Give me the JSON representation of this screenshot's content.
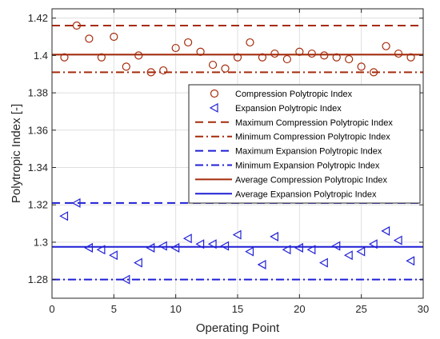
{
  "chart_data": {
    "type": "scatter",
    "title": "",
    "xlabel": "Operating Point",
    "ylabel": "Polytropic Index [-]",
    "xlim": [
      0,
      30
    ],
    "ylim": [
      1.27,
      1.425
    ],
    "xticks": [
      0,
      5,
      10,
      15,
      20,
      25,
      30
    ],
    "yticks": [
      1.28,
      1.3,
      1.32,
      1.34,
      1.36,
      1.38,
      1.4,
      1.42
    ],
    "xtick_labels": [
      "0",
      "5",
      "10",
      "15",
      "20",
      "25",
      "30"
    ],
    "ytick_labels": [
      "1.28",
      "1.3",
      "1.32",
      "1.34",
      "1.36",
      "1.38",
      "1.4",
      "1.42"
    ],
    "grid": true,
    "legend_position": "inside-right",
    "colors": {
      "compression": "#a52a0a",
      "expansion": "#1f1fd6",
      "grid": "#dfdfdf",
      "axis": "#262626"
    },
    "series": [
      {
        "name": "Compression Polytropic Index",
        "kind": "scatter",
        "marker": "circle",
        "x": [
          1,
          2,
          3,
          4,
          5,
          6,
          7,
          8,
          9,
          10,
          11,
          12,
          13,
          14,
          15,
          16,
          17,
          18,
          19,
          20,
          21,
          22,
          23,
          24,
          25,
          26,
          27,
          28,
          29
        ],
        "y": [
          1.399,
          1.416,
          1.409,
          1.399,
          1.41,
          1.394,
          1.4,
          1.391,
          1.392,
          1.404,
          1.407,
          1.402,
          1.395,
          1.393,
          1.399,
          1.407,
          1.399,
          1.401,
          1.398,
          1.402,
          1.401,
          1.4,
          1.399,
          1.398,
          1.394,
          1.391,
          1.405,
          1.401,
          1.399
        ]
      },
      {
        "name": "Expansion Polytropic Index",
        "kind": "scatter",
        "marker": "triangle-left",
        "x": [
          1,
          2,
          3,
          4,
          5,
          6,
          7,
          8,
          9,
          10,
          11,
          12,
          13,
          14,
          15,
          16,
          17,
          18,
          19,
          20,
          21,
          22,
          23,
          24,
          25,
          26,
          27,
          28,
          29
        ],
        "y": [
          1.314,
          1.321,
          1.297,
          1.296,
          1.293,
          1.28,
          1.289,
          1.297,
          1.298,
          1.297,
          1.302,
          1.299,
          1.299,
          1.298,
          1.304,
          1.295,
          1.288,
          1.303,
          1.296,
          1.297,
          1.296,
          1.289,
          1.298,
          1.293,
          1.295,
          1.299,
          1.306,
          1.301,
          1.29
        ]
      },
      {
        "name": "Maximum Compression Polytropic Index",
        "kind": "hline",
        "y": 1.416,
        "style": "dashed",
        "color": "compression"
      },
      {
        "name": "Minimum Compression Polytropic Index",
        "kind": "hline",
        "y": 1.391,
        "style": "dashdot",
        "color": "compression"
      },
      {
        "name": "Maximum Expansion Polytropic Index",
        "kind": "hline",
        "y": 1.321,
        "style": "dashed",
        "color": "expansion"
      },
      {
        "name": "Minimum Expansion Polytropic Index",
        "kind": "hline",
        "y": 1.28,
        "style": "dashdot",
        "color": "expansion"
      },
      {
        "name": "Average Compression Polytropic Index",
        "kind": "hline",
        "y": 1.4005,
        "style": "solid",
        "color": "compression"
      },
      {
        "name": "Average Expansion Polytropic Index",
        "kind": "hline",
        "y": 1.2975,
        "style": "solid",
        "color": "expansion"
      }
    ]
  }
}
